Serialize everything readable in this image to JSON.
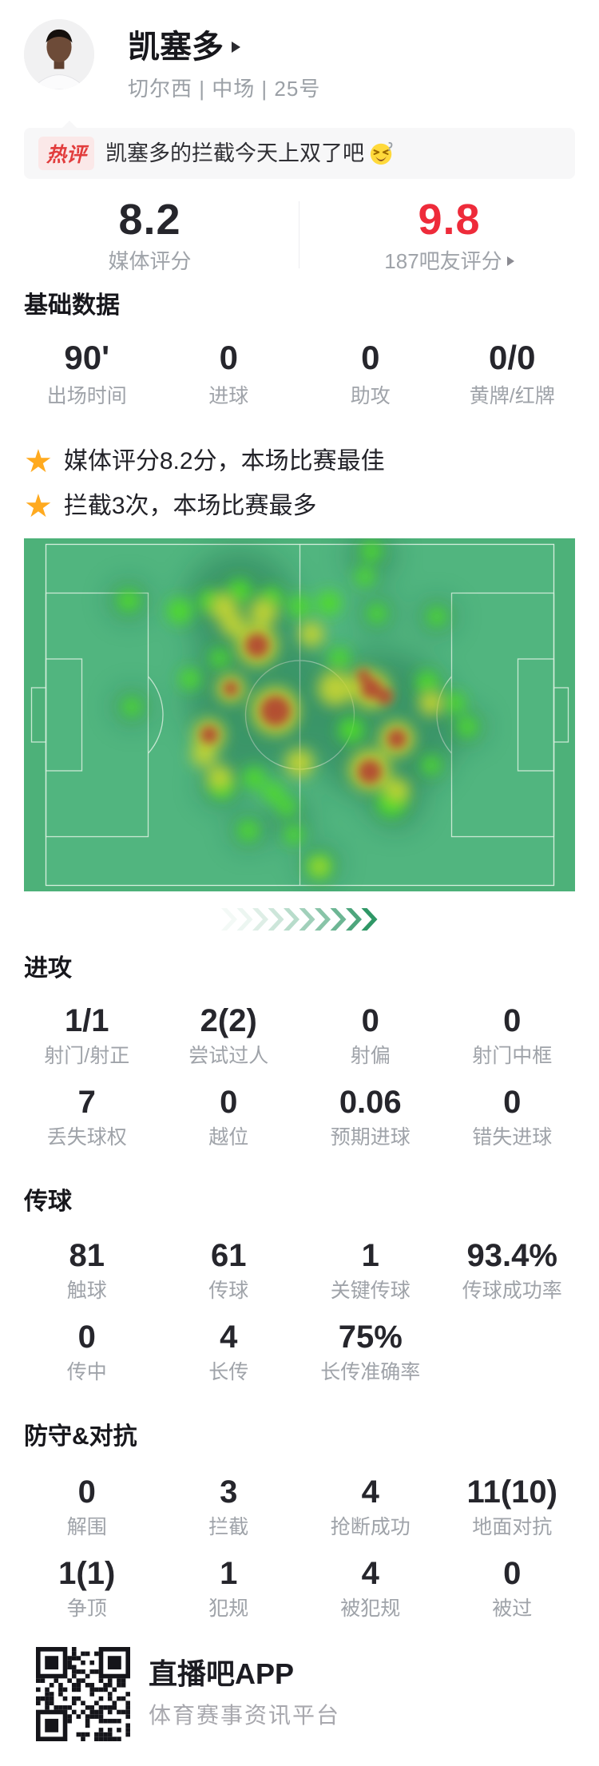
{
  "colors": {
    "accent_red": "#ee2b3a",
    "star_orange": "#ffaa1f",
    "badge_red": "#e23c3c",
    "badge_bg": "#fbe8e8",
    "pitch_green": "#51b57f",
    "pitch_margin_green": "#4db179",
    "pitch_line": "#d6eedd",
    "heat_halo": "#1f6a49",
    "heat_green": "#4fdd2c",
    "heat_yellow": "#c9d630",
    "heat_red": "#b34a31",
    "chevron_green": "#2f9766"
  },
  "icons": {
    "star": "★"
  },
  "header": {
    "player_name": "凯塞多",
    "meta": "切尔西 | 中场 | 25号"
  },
  "hot_comment": {
    "badge": "热评",
    "text": "凯塞多的拦截今天上双了吧"
  },
  "ratings": {
    "media_value": "8.2",
    "media_label": "媒体评分",
    "fan_value": "9.8",
    "fan_label": "187吧友评分"
  },
  "basic": {
    "title": "基础数据",
    "items": [
      {
        "value": "90'",
        "label": "出场时间"
      },
      {
        "value": "0",
        "label": "进球"
      },
      {
        "value": "0",
        "label": "助攻"
      },
      {
        "value": "0/0",
        "label": "黄牌/红牌"
      }
    ]
  },
  "highlights": [
    {
      "text": "媒体评分8.2分，本场比赛最佳"
    },
    {
      "text": "拦截3次，本场比赛最多"
    }
  ],
  "sections": [
    {
      "title": "进攻",
      "items": [
        {
          "value": "1/1",
          "label": "射门/射正"
        },
        {
          "value": "2(2)",
          "label": "尝试过人"
        },
        {
          "value": "0",
          "label": "射偏"
        },
        {
          "value": "0",
          "label": "射门中框"
        },
        {
          "value": "7",
          "label": "丢失球权"
        },
        {
          "value": "0",
          "label": "越位"
        },
        {
          "value": "0.06",
          "label": "预期进球"
        },
        {
          "value": "0",
          "label": "错失进球"
        }
      ]
    },
    {
      "title": "传球",
      "items": [
        {
          "value": "81",
          "label": "触球"
        },
        {
          "value": "61",
          "label": "传球"
        },
        {
          "value": "1",
          "label": "关键传球"
        },
        {
          "value": "93.4%",
          "label": "传球成功率"
        },
        {
          "value": "0",
          "label": "传中"
        },
        {
          "value": "4",
          "label": "长传"
        },
        {
          "value": "75%",
          "label": "长传准确率"
        }
      ]
    },
    {
      "title": "防守&对抗",
      "items": [
        {
          "value": "0",
          "label": "解围"
        },
        {
          "value": "3",
          "label": "拦截"
        },
        {
          "value": "4",
          "label": "抢断成功"
        },
        {
          "value": "11(10)",
          "label": "地面对抗"
        },
        {
          "value": "1(1)",
          "label": "争顶"
        },
        {
          "value": "1",
          "label": "犯规"
        },
        {
          "value": "4",
          "label": "被犯规"
        },
        {
          "value": "0",
          "label": "被过"
        }
      ]
    }
  ],
  "heatmap": {
    "chevron_count": 10,
    "halo": [
      [
        270,
        85,
        70
      ],
      [
        435,
        22,
        30
      ],
      [
        131,
        78,
        24
      ],
      [
        517,
        98,
        22
      ],
      [
        442,
        94,
        22
      ],
      [
        135,
        211,
        22
      ],
      [
        298,
        200,
        95
      ],
      [
        448,
        235,
        95
      ],
      [
        555,
        236,
        22
      ],
      [
        510,
        284,
        20
      ],
      [
        281,
        366,
        22
      ],
      [
        334,
        350,
        26
      ],
      [
        370,
        408,
        24
      ],
      [
        465,
        330,
        34
      ],
      [
        248,
        308,
        28
      ]
    ],
    "green": [
      [
        131,
        78,
        14
      ],
      [
        195,
        91,
        16
      ],
      [
        232,
        78,
        13
      ],
      [
        270,
        66,
        15
      ],
      [
        310,
        74,
        13
      ],
      [
        345,
        85,
        14
      ],
      [
        382,
        81,
        15
      ],
      [
        442,
        94,
        12
      ],
      [
        517,
        98,
        12
      ],
      [
        435,
        16,
        13
      ],
      [
        427,
        48,
        12
      ],
      [
        135,
        211,
        12
      ],
      [
        555,
        236,
        13
      ],
      [
        510,
        284,
        12
      ],
      [
        281,
        366,
        13
      ],
      [
        329,
        336,
        12
      ],
      [
        338,
        371,
        12
      ],
      [
        370,
        411,
        15
      ],
      [
        460,
        331,
        18
      ],
      [
        248,
        312,
        14
      ],
      [
        312,
        318,
        13
      ],
      [
        208,
        176,
        13
      ],
      [
        288,
        300,
        14
      ],
      [
        410,
        240,
        16
      ],
      [
        395,
        150,
        13
      ],
      [
        505,
        180,
        14
      ],
      [
        540,
        206,
        13
      ],
      [
        245,
        150,
        12
      ]
    ],
    "yellow": [
      [
        292,
        134,
        26
      ],
      [
        262,
        108,
        16
      ],
      [
        300,
        92,
        18
      ],
      [
        315,
        216,
        30
      ],
      [
        259,
        188,
        18
      ],
      [
        232,
        246,
        20
      ],
      [
        390,
        188,
        22
      ],
      [
        435,
        190,
        24
      ],
      [
        467,
        251,
        22
      ],
      [
        433,
        290,
        26
      ],
      [
        510,
        206,
        16
      ],
      [
        345,
        281,
        18
      ],
      [
        370,
        411,
        10
      ],
      [
        467,
        316,
        16
      ],
      [
        250,
        86,
        18
      ],
      [
        245,
        300,
        16
      ],
      [
        425,
        176,
        14
      ],
      [
        360,
        120,
        16
      ],
      [
        225,
        270,
        16
      ]
    ],
    "red": [
      [
        292,
        134,
        15
      ],
      [
        259,
        188,
        9
      ],
      [
        315,
        216,
        19
      ],
      [
        232,
        246,
        11
      ],
      [
        435,
        188,
        13
      ],
      [
        452,
        198,
        10
      ],
      [
        425,
        172,
        8
      ],
      [
        467,
        251,
        12
      ],
      [
        433,
        292,
        15
      ]
    ]
  },
  "footer": {
    "app_name": "直播吧APP",
    "tagline": "体育赛事资讯平台"
  }
}
